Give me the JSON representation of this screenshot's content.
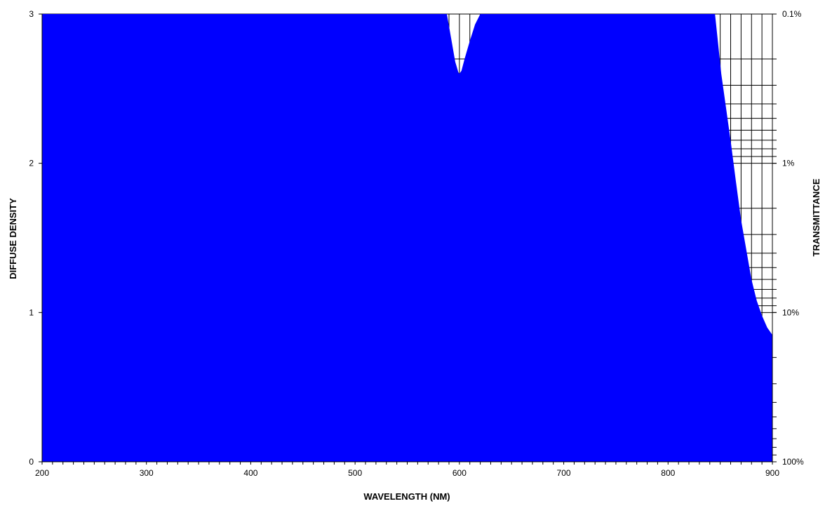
{
  "chart_data": {
    "type": "area",
    "xlabel": "WAVELENGTH (NM)",
    "ylabel": "DIFFUSE DENSITY",
    "y2label": "TRANSMITTANCE",
    "xlim": [
      200,
      900
    ],
    "ylim": [
      0,
      3
    ],
    "x_ticks": [
      200,
      300,
      400,
      500,
      600,
      700,
      800,
      900
    ],
    "x_tick_labels": [
      "200",
      "300",
      "400",
      "500",
      "600",
      "700",
      "800",
      "900"
    ],
    "y_ticks": [
      0,
      1,
      2,
      3
    ],
    "y_tick_labels": [
      "0",
      "1",
      "2",
      "3"
    ],
    "y2_ticks": [
      {
        "density": 3,
        "label": "0.1%"
      },
      {
        "density": 2,
        "label": "1%"
      },
      {
        "density": 1,
        "label": "10%"
      },
      {
        "density": 0,
        "label": "100%"
      }
    ],
    "y2_scale": "log",
    "grid": true,
    "fill_color": "#0000ff",
    "series": [
      {
        "x": [
          200,
          588,
          590,
          593,
          596,
          599,
          600,
          602,
          605,
          610,
          615,
          620,
          622,
          845,
          848,
          851,
          855,
          860,
          865,
          870,
          875,
          880,
          885,
          890,
          895,
          900
        ],
        "y": [
          3.0,
          3.0,
          2.92,
          2.8,
          2.68,
          2.61,
          2.6,
          2.62,
          2.7,
          2.82,
          2.93,
          3.0,
          3.0,
          3.0,
          2.8,
          2.6,
          2.4,
          2.15,
          1.88,
          1.62,
          1.42,
          1.22,
          1.08,
          0.98,
          0.9,
          0.85
        ]
      }
    ]
  }
}
